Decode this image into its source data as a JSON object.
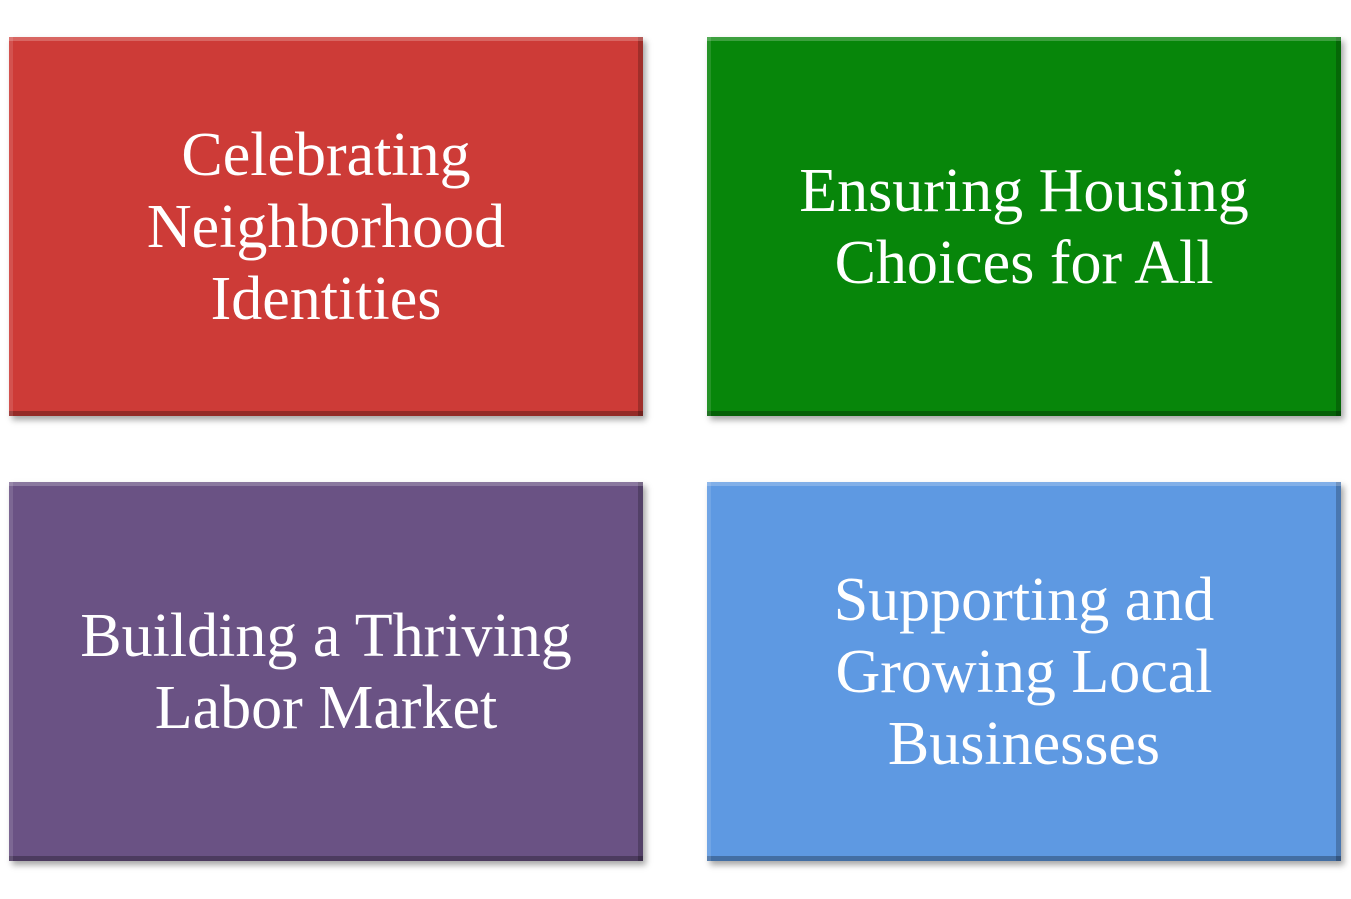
{
  "tiles": [
    {
      "text": "Celebrating\nNeighborhood\nIdentities",
      "color": "#cd3b37"
    },
    {
      "text": "Ensuring Housing\nChoices for All",
      "color": "#07860a"
    },
    {
      "text": "Building a Thriving\nLabor Market",
      "color": "#6a5284"
    },
    {
      "text": "Supporting and\nGrowing Local\nBusinesses",
      "color": "#5e99e2"
    }
  ]
}
